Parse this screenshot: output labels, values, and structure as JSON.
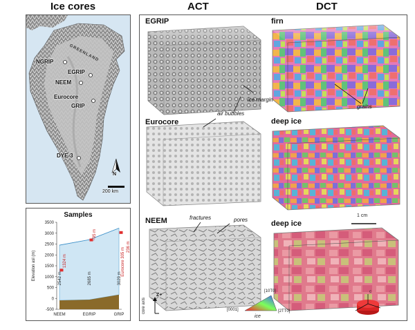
{
  "headings": {
    "ice_cores": "Ice cores",
    "act": "ACT",
    "dct": "DCT"
  },
  "map": {
    "region_label": "GREENLAND",
    "sites": [
      "NGRIP",
      "EGRIP",
      "NEEM",
      "Eurocore",
      "GRIP",
      "DYE-3"
    ],
    "north_label": "N",
    "scale_label": "200 km"
  },
  "samples": {
    "title": "Samples",
    "ylabel": "Elevation asl (m)",
    "yticks": [
      "3500",
      "3000",
      "2500",
      "2000",
      "1500",
      "1000",
      "500",
      "0",
      "-500"
    ],
    "xticks": [
      "NEEM",
      "EGRIP",
      "GRIP"
    ],
    "depth_labels": [
      "2542 m",
      "2685 m",
      "3029 m"
    ],
    "sample_labels": [
      "1324 m",
      "~95 m",
      "Eurocore 305 m",
      "236 m"
    ]
  },
  "act": {
    "egrip": "EGRIP",
    "eurocore": "Eurocore",
    "neem": "NEEM",
    "ann_ice_margin": "ice margin",
    "ann_air_bubbles": "air bubbles",
    "ann_fractures": "fractures",
    "ann_pores": "pores",
    "axis_z": "Z+",
    "axis_core": "core axis"
  },
  "dct": {
    "firn": "firn",
    "deep_ice_1": "deep ice",
    "deep_ice_2": "deep ice",
    "ann_grains": "grains",
    "scale": "1 cm"
  },
  "ipf": {
    "t0001": "[0001]",
    "t10to": "[10T0]",
    "t2tto": "[2TT0]",
    "ice": "ice",
    "crystal_c": "c"
  },
  "chart_data": {
    "type": "area",
    "title": "Samples",
    "ylabel": "Elevation asl (m)",
    "categories": [
      "NEEM",
      "EGRIP",
      "GRIP"
    ],
    "ylim": [
      -500,
      3500
    ],
    "series": [
      {
        "name": "",
        "values": [
          2450,
          2700,
          3230
        ]
      },
      {
        "name": "",
        "values": [
          -90,
          -60,
          170
        ]
      }
    ]
  }
}
